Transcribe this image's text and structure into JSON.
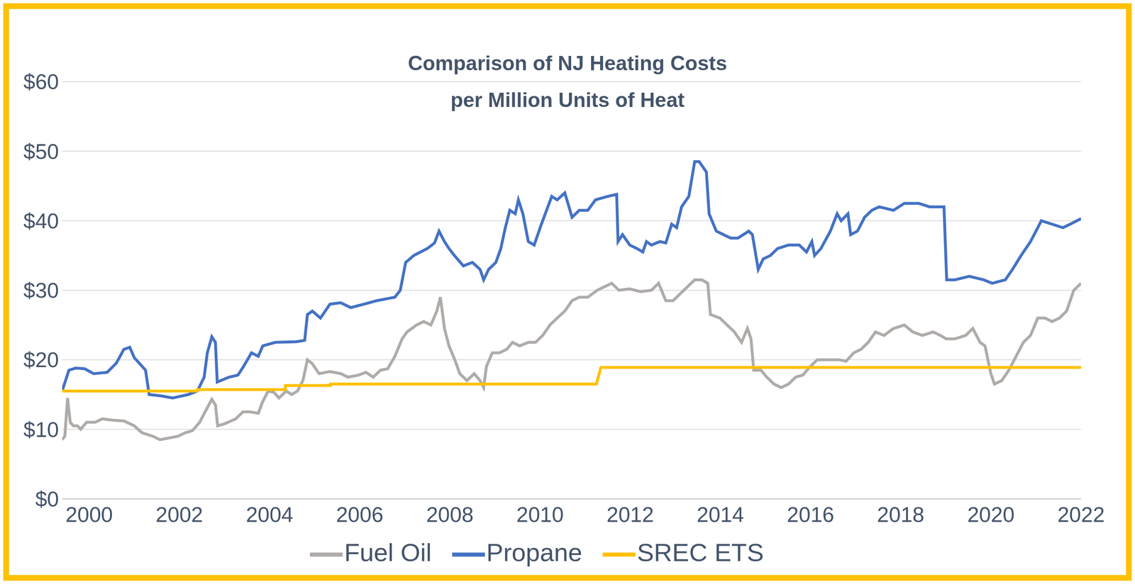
{
  "chart_data": {
    "type": "line",
    "title": "Comparison of NJ Heating Costs\nper Million Units of Heat",
    "xlim": [
      1999.4,
      2022
    ],
    "xticks": [
      2000,
      2002,
      2004,
      2006,
      2008,
      2010,
      2012,
      2014,
      2016,
      2018,
      2020,
      2022
    ],
    "ylim": [
      0,
      60
    ],
    "yticks": [
      {
        "value": 0,
        "label": "$0"
      },
      {
        "value": 10,
        "label": "$10"
      },
      {
        "value": 20,
        "label": "$20"
      },
      {
        "value": 30,
        "label": "$30"
      },
      {
        "value": 40,
        "label": "$40"
      },
      {
        "value": 50,
        "label": "$50"
      },
      {
        "value": 60,
        "label": "$60"
      }
    ],
    "grid": true,
    "legend": "bottom",
    "series": [
      {
        "name": "Propane",
        "color": "#4472c4",
        "x": [
          1999.4,
          1999.55,
          1999.7,
          1999.9,
          2000.1,
          2000.4,
          2000.6,
          2000.77,
          2000.9,
          2001.0,
          2001.25,
          2001.33,
          2001.6,
          2001.85,
          2002.2,
          2002.4,
          2002.55,
          2002.62,
          2002.72,
          2002.8,
          2002.84,
          2003.1,
          2003.3,
          2003.42,
          2003.6,
          2003.75,
          2003.85,
          2004.13,
          2004.6,
          2004.78,
          2004.84,
          2004.95,
          2005.13,
          2005.34,
          2005.58,
          2005.8,
          2006.1,
          2006.38,
          2006.62,
          2006.78,
          2006.9,
          2007.02,
          2007.2,
          2007.5,
          2007.66,
          2007.76,
          2007.88,
          2007.98,
          2008.1,
          2008.3,
          2008.5,
          2008.67,
          2008.75,
          2008.86,
          2009.02,
          2009.13,
          2009.23,
          2009.33,
          2009.45,
          2009.52,
          2009.62,
          2009.74,
          2009.87,
          2010.03,
          2010.26,
          2010.38,
          2010.55,
          2010.71,
          2010.87,
          2011.06,
          2011.23,
          2011.5,
          2011.7,
          2011.73,
          2011.83,
          2011.99,
          2012.15,
          2012.28,
          2012.36,
          2012.47,
          2012.66,
          2012.79,
          2012.92,
          2013.03,
          2013.14,
          2013.3,
          2013.43,
          2013.53,
          2013.69,
          2013.75,
          2013.91,
          2014.23,
          2014.39,
          2014.63,
          2014.71,
          2014.84,
          2014.95,
          2015.11,
          2015.27,
          2015.51,
          2015.75,
          2015.91,
          2016.03,
          2016.09,
          2016.23,
          2016.44,
          2016.59,
          2016.68,
          2016.83,
          2016.89,
          2017.04,
          2017.2,
          2017.36,
          2017.52,
          2017.84,
          2018.08,
          2018.4,
          2018.64,
          2018.96,
          2019.02,
          2019.2,
          2019.52,
          2019.84,
          2020.03,
          2020.32,
          2020.48,
          2020.67,
          2020.88,
          2021.12,
          2021.36,
          2021.6,
          2021.76,
          2022.0
        ],
        "values": [
          15.5,
          18.5,
          18.8,
          18.7,
          18.0,
          18.2,
          19.5,
          21.5,
          21.8,
          20.3,
          18.5,
          15.0,
          14.8,
          14.5,
          15.0,
          15.5,
          17.5,
          21.0,
          23.3,
          22.5,
          16.8,
          17.5,
          17.8,
          19.0,
          21.0,
          20.5,
          22.0,
          22.5,
          22.6,
          22.8,
          26.5,
          27.0,
          26.0,
          28.0,
          28.2,
          27.5,
          28.0,
          28.5,
          28.8,
          29.0,
          30.0,
          34.0,
          35.0,
          36.0,
          36.8,
          38.5,
          37.0,
          36.0,
          35.0,
          33.5,
          34.0,
          33.0,
          31.5,
          33.0,
          34.0,
          36.0,
          39.0,
          41.5,
          41.0,
          43.0,
          41.0,
          37.0,
          36.5,
          39.5,
          43.5,
          43.0,
          44.0,
          40.5,
          41.5,
          41.5,
          43.0,
          43.5,
          43.8,
          37.0,
          38.0,
          36.5,
          36.0,
          35.5,
          37.0,
          36.5,
          37.0,
          36.8,
          39.5,
          39.0,
          42.0,
          43.5,
          48.5,
          48.5,
          47.0,
          41.0,
          38.5,
          37.5,
          37.5,
          38.5,
          38.0,
          33.0,
          34.5,
          35.0,
          36.0,
          36.5,
          36.5,
          35.5,
          37.0,
          35.0,
          36.0,
          38.5,
          41.0,
          40.0,
          41.0,
          38.0,
          38.5,
          40.5,
          41.5,
          42.0,
          41.5,
          42.5,
          42.5,
          42.0,
          42.0,
          31.5,
          31.5,
          32.0,
          31.5,
          31.0,
          31.5,
          33.0,
          35.0,
          37.0,
          40.0,
          39.5,
          39.0,
          39.5,
          40.3
        ]
      },
      {
        "name": "Fuel Oil",
        "color": "#afaba9",
        "x": [
          1999.4,
          1999.46,
          1999.52,
          1999.58,
          1999.65,
          1999.74,
          1999.81,
          1999.94,
          2000.13,
          2000.29,
          2000.53,
          2000.77,
          2001.0,
          2001.17,
          2001.41,
          2001.57,
          2001.81,
          2001.97,
          2002.13,
          2002.29,
          2002.45,
          2002.53,
          2002.61,
          2002.72,
          2002.8,
          2002.85,
          2003.01,
          2003.25,
          2003.41,
          2003.57,
          2003.75,
          2003.85,
          2003.97,
          2004.1,
          2004.21,
          2004.37,
          2004.49,
          2004.62,
          2004.74,
          2004.84,
          2004.94,
          2005.1,
          2005.34,
          2005.58,
          2005.74,
          2005.98,
          2006.14,
          2006.3,
          2006.46,
          2006.62,
          2006.78,
          2006.94,
          2007.05,
          2007.26,
          2007.42,
          2007.58,
          2007.71,
          2007.79,
          2007.88,
          2007.98,
          2008.11,
          2008.22,
          2008.38,
          2008.54,
          2008.67,
          2008.75,
          2008.81,
          2008.94,
          2009.1,
          2009.26,
          2009.39,
          2009.55,
          2009.74,
          2009.9,
          2010.06,
          2010.22,
          2010.38,
          2010.55,
          2010.71,
          2010.87,
          2011.06,
          2011.27,
          2011.43,
          2011.59,
          2011.75,
          2011.99,
          2012.23,
          2012.47,
          2012.63,
          2012.79,
          2012.95,
          2013.11,
          2013.27,
          2013.43,
          2013.59,
          2013.72,
          2013.78,
          2013.99,
          2014.15,
          2014.31,
          2014.47,
          2014.6,
          2014.68,
          2014.74,
          2014.9,
          2015.03,
          2015.19,
          2015.35,
          2015.51,
          2015.67,
          2015.83,
          2015.99,
          2016.15,
          2016.39,
          2016.63,
          2016.79,
          2016.96,
          2017.12,
          2017.28,
          2017.44,
          2017.63,
          2017.84,
          2018.08,
          2018.27,
          2018.48,
          2018.72,
          2018.88,
          2019.01,
          2019.2,
          2019.44,
          2019.6,
          2019.76,
          2019.87,
          2020.0,
          2020.08,
          2020.24,
          2020.4,
          2020.56,
          2020.72,
          2020.88,
          2021.04,
          2021.2,
          2021.36,
          2021.52,
          2021.68,
          2021.84,
          2022.0
        ],
        "values": [
          8.5,
          9.0,
          14.5,
          11.0,
          10.5,
          10.5,
          10.0,
          11.0,
          11.0,
          11.5,
          11.3,
          11.2,
          10.5,
          9.5,
          9.0,
          8.5,
          8.8,
          9.0,
          9.5,
          9.8,
          11.0,
          12.0,
          13.0,
          14.3,
          13.5,
          10.5,
          10.8,
          11.5,
          12.5,
          12.5,
          12.3,
          14.0,
          15.5,
          15.3,
          14.5,
          15.5,
          15.0,
          15.5,
          17.0,
          20.0,
          19.5,
          18.0,
          18.3,
          18.0,
          17.5,
          17.8,
          18.2,
          17.5,
          18.5,
          18.7,
          20.5,
          23.0,
          24.0,
          25.0,
          25.5,
          25.0,
          27.0,
          29.0,
          24.5,
          22.0,
          20.0,
          18.0,
          17.0,
          18.0,
          17.0,
          16.0,
          19.0,
          21.0,
          21.0,
          21.5,
          22.5,
          22.0,
          22.5,
          22.5,
          23.5,
          25.0,
          26.0,
          27.0,
          28.5,
          29.0,
          29.0,
          30.0,
          30.5,
          31.0,
          30.0,
          30.2,
          29.8,
          30.0,
          31.0,
          28.5,
          28.5,
          29.5,
          30.5,
          31.5,
          31.5,
          31.0,
          26.5,
          26.0,
          25.0,
          24.0,
          22.5,
          24.5,
          23.0,
          18.5,
          18.5,
          17.5,
          16.5,
          16.0,
          16.5,
          17.5,
          17.8,
          19.0,
          20.0,
          20.0,
          20.0,
          19.8,
          21.0,
          21.5,
          22.5,
          24.0,
          23.5,
          24.5,
          25.0,
          24.0,
          23.5,
          24.0,
          23.5,
          23.0,
          23.0,
          23.5,
          24.5,
          22.5,
          22.0,
          18.0,
          16.5,
          17.0,
          18.5,
          20.5,
          22.5,
          23.5,
          26.0,
          26.0,
          25.5,
          26.0,
          27.0,
          30.0,
          31.0
        ]
      },
      {
        "name": "SREC ETS",
        "color": "#ffc000",
        "x": [
          1999.4,
          2002.4,
          2002.4,
          2004.35,
          2004.35,
          2005.35,
          2005.35,
          2011.25,
          2011.35,
          2022.0
        ],
        "values": [
          15.5,
          15.5,
          15.7,
          15.7,
          16.3,
          16.3,
          16.5,
          16.5,
          18.9,
          18.9
        ]
      }
    ]
  }
}
